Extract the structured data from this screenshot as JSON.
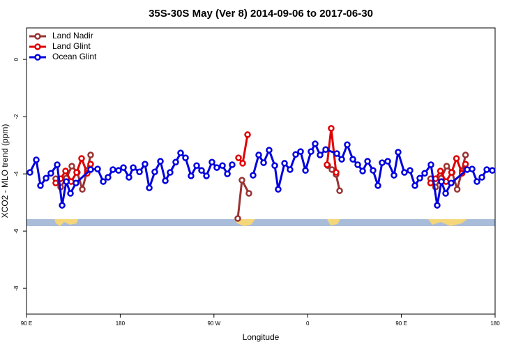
{
  "chart_data": {
    "type": "line",
    "title": "35S-30S May (Ver 8)   2014-09-06 to 2017-06-30",
    "x_label": "Longitude",
    "y_label": "XCO2 - MLO trend (ppm)",
    "xlim": [
      90,
      540
    ],
    "ylim": [
      -8.9,
      1.1
    ],
    "xticks": [
      {
        "value": 90,
        "label": "90 E"
      },
      180,
      {
        "value": 270,
        "label": "90 W"
      },
      {
        "value": 360,
        "label": "0"
      },
      {
        "value": 450,
        "label": "90 E"
      },
      {
        "value": 540,
        "label": "180"
      }
    ],
    "yticks": [
      0,
      -2,
      -4,
      -6,
      -8
    ],
    "legend": "top-left",
    "series": [
      {
        "name": "Land Nadir",
        "color": "#993333",
        "x": [
          118.1,
          122.8,
          128.2,
          133.5,
          138.8,
          143.6,
          148.3,
          151.6,
          200,
          292.9,
          296.9,
          303.6,
          340,
          379.3,
          383.3,
          387.3,
          390.7,
          440,
          478.1,
          482.8,
          488.2,
          493.5,
          498.8,
          503.6,
          508.3,
          511.6
        ],
        "values": [
          -4.17,
          -4.46,
          -4.15,
          -3.73,
          -3.95,
          -4.54,
          -3.88,
          -3.34,
          null,
          -5.56,
          -4.22,
          -4.68,
          null,
          -3.71,
          -3.85,
          -4.02,
          -4.59,
          null,
          -4.17,
          -4.46,
          -4.15,
          -3.73,
          -3.95,
          -4.54,
          -3.88,
          -3.34
        ]
      },
      {
        "name": "Land Glint",
        "color": "#e00000",
        "x": [
          118.1,
          122.8,
          127.5,
          132.9,
          138.2,
          142.9,
          148.3,
          151.6,
          200,
          293.6,
          297.6,
          302.3,
          340,
          378.6,
          382.6,
          387.3,
          440,
          478.1,
          482.8,
          487.5,
          492.9,
          498.2,
          502.9,
          508.3,
          511.6
        ],
        "values": [
          -4.32,
          -4.17,
          -3.9,
          -4.27,
          -3.95,
          -3.46,
          -3.98,
          -3.66,
          null,
          -3.44,
          -3.63,
          -2.63,
          null,
          -3.68,
          -2.41,
          -3.95,
          null,
          -4.32,
          -4.17,
          -3.9,
          -4.27,
          -3.95,
          -3.46,
          -3.98,
          -3.66
        ]
      },
      {
        "name": "Ocean Glint",
        "color": "#0000dd",
        "x": [
          93.3,
          99.4,
          103.4,
          108.8,
          113.4,
          119.5,
          124.2,
          128.2,
          132.2,
          137.5,
          151.6,
          158.3,
          163.7,
          168.3,
          173.0,
          178.4,
          183.1,
          188.4,
          192.5,
          198.5,
          203.8,
          207.9,
          213.2,
          218.6,
          223.3,
          227.9,
          233.3,
          238.0,
          242.7,
          248.0,
          253.4,
          258.1,
          262.8,
          268.1,
          272.8,
          278.2,
          282.9,
          287.5,
          297,
          307.6,
          313.0,
          317.7,
          323.0,
          328.4,
          331.7,
          337.8,
          343.1,
          348.5,
          353.2,
          357.9,
          363.2,
          367.2,
          371.9,
          377.3,
          388.0,
          392.7,
          398.0,
          403.4,
          408.1,
          412.8,
          417.5,
          422.8,
          427.5,
          431.5,
          436.9,
          442.9,
          446.9,
          452.9,
          458.3,
          463.0,
          467.7,
          472.4,
          478.4,
          484.4,
          488.4,
          492.5,
          497.8,
          513.2,
          517.9,
          522.6,
          527.3,
          532.0,
          537.3
        ],
        "values": [
          -3.95,
          -3.51,
          -4.41,
          -4.15,
          -3.98,
          -3.68,
          -5.1,
          -4.27,
          -4.68,
          -4.32,
          -3.85,
          -3.83,
          -4.27,
          -4.12,
          -3.85,
          -3.88,
          -3.78,
          -4.12,
          -3.78,
          -3.93,
          -3.66,
          -4.49,
          -3.93,
          -3.56,
          -4.24,
          -3.95,
          -3.59,
          -3.27,
          -3.44,
          -4.07,
          -3.71,
          -3.88,
          -4.07,
          -3.59,
          -3.78,
          -3.71,
          -4.0,
          -3.68,
          null,
          -4.05,
          -3.34,
          -3.61,
          -3.17,
          -3.71,
          -4.54,
          -3.63,
          -3.85,
          -3.32,
          -3.22,
          -3.88,
          -3.22,
          -2.95,
          -3.34,
          -3.15,
          -3.29,
          -3.49,
          -2.98,
          -3.49,
          -3.68,
          -3.9,
          -3.56,
          -3.88,
          -4.41,
          -3.61,
          -3.56,
          -4.05,
          -3.24,
          -3.95,
          -3.88,
          -4.41,
          -4.15,
          -3.98,
          -3.68,
          -5.1,
          -4.27,
          -4.68,
          -4.32,
          -3.85,
          -3.83,
          -4.27,
          -4.12,
          -3.85,
          -3.88
        ]
      }
    ]
  }
}
